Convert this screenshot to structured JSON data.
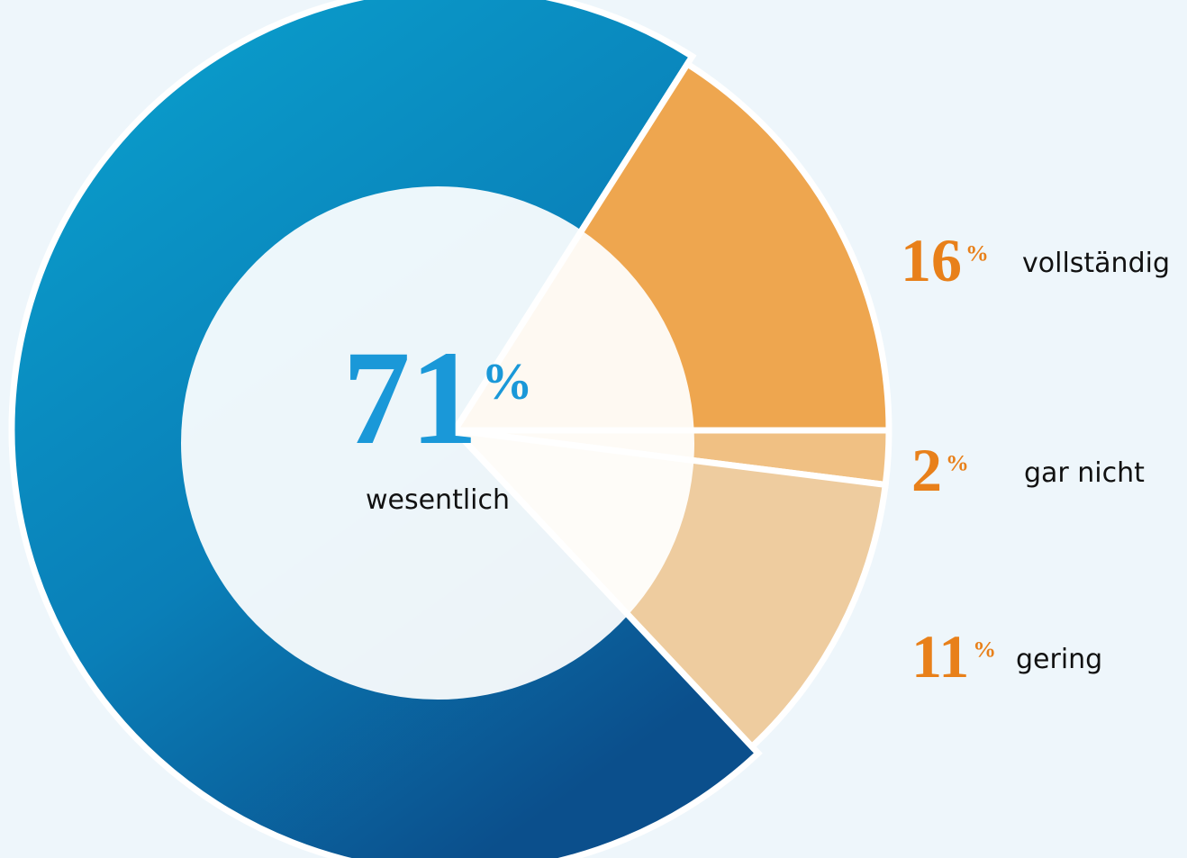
{
  "chart_data": {
    "type": "donut",
    "categories": [
      "wesentlich",
      "vollständig",
      "gar nicht",
      "gering"
    ],
    "values": [
      71,
      16,
      2,
      11
    ],
    "value_labels": [
      "71%",
      "16%",
      "2%",
      "11%"
    ],
    "colors": [
      "#0a8fc4",
      "#eea64f",
      "#f0c083",
      "#eecc9f"
    ]
  }
}
